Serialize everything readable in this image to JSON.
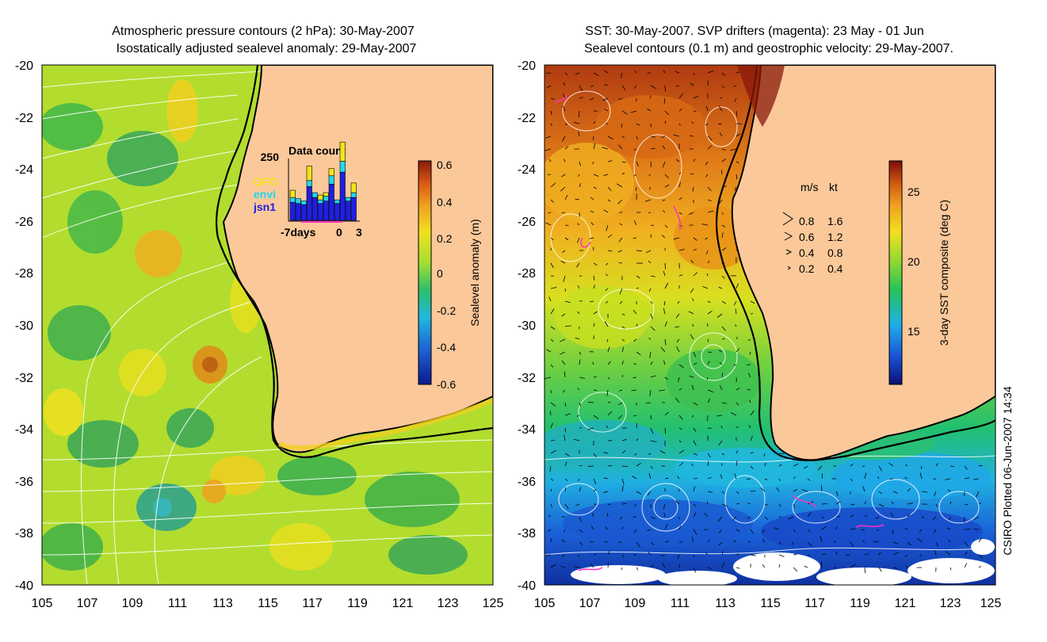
{
  "left_panel": {
    "title_line1": "Atmospheric pressure contours (2 hPa): 30-May-2007",
    "title_line2": "Isostatically adjusted sealevel anomaly: 29-May-2007",
    "lat_ticks": [
      "-20",
      "-22",
      "-24",
      "-26",
      "-28",
      "-30",
      "-32",
      "-34",
      "-36",
      "-38",
      "-40"
    ],
    "lon_ticks": [
      "105",
      "107",
      "109",
      "111",
      "113",
      "115",
      "117",
      "119",
      "121",
      "123",
      "125"
    ],
    "colorbar": {
      "label": "Sealevel anomaly (m)",
      "ticks": [
        "0.6",
        "0.4",
        "0.2",
        "0",
        "-0.2",
        "-0.4",
        "-0.6"
      ],
      "range": [
        -0.6,
        0.6
      ]
    },
    "inset": {
      "title": "Data count",
      "ymax_label": "250",
      "x_labels": [
        "-7days",
        "0",
        "3"
      ],
      "legend": [
        {
          "name": "GFO",
          "color": "#f2e41a"
        },
        {
          "name": "envi",
          "color": "#22d6f0"
        },
        {
          "name": "jsn1",
          "color": "#1f1fe0"
        }
      ],
      "bars": [
        {
          "jsn1": 75,
          "envi": 20,
          "gfo": 30
        },
        {
          "jsn1": 70,
          "envi": 20,
          "gfo": 0
        },
        {
          "jsn1": 65,
          "envi": 15,
          "gfo": 0
        },
        {
          "jsn1": 140,
          "envi": 25,
          "gfo": 60
        },
        {
          "jsn1": 95,
          "envi": 20,
          "gfo": 0
        },
        {
          "jsn1": 70,
          "envi": 15,
          "gfo": 20
        },
        {
          "jsn1": 80,
          "envi": 20,
          "gfo": 15
        },
        {
          "jsn1": 150,
          "envi": 35,
          "gfo": 30
        },
        {
          "jsn1": 70,
          "envi": 15,
          "gfo": 0
        },
        {
          "jsn1": 200,
          "envi": 45,
          "gfo": 80
        },
        {
          "jsn1": 80,
          "envi": 15,
          "gfo": 0
        },
        {
          "jsn1": 95,
          "envi": 20,
          "gfo": 40
        }
      ]
    }
  },
  "right_panel": {
    "title_line1": "SST: 30-May-2007. SVP drifters (magenta): 23 May - 01 Jun",
    "title_line2": "Sealevel contours (0.1 m) and geostrophic velocity: 29-May-2007.",
    "lat_ticks": [
      "-20",
      "-22",
      "-24",
      "-26",
      "-28",
      "-30",
      "-32",
      "-34",
      "-36",
      "-38",
      "-40"
    ],
    "lon_ticks": [
      "105",
      "107",
      "109",
      "111",
      "113",
      "115",
      "117",
      "119",
      "121",
      "123",
      "125"
    ],
    "colorbar": {
      "label": "3-day SST composite (deg C)",
      "ticks": [
        "25",
        "20",
        "15"
      ],
      "range": [
        11,
        27
      ]
    },
    "velocity_key": {
      "header_ms": "m/s",
      "header_kt": "kt",
      "rows": [
        {
          "ms": "0.8",
          "kt": "1.6"
        },
        {
          "ms": "0.6",
          "kt": "1.2"
        },
        {
          "ms": "0.4",
          "kt": "0.8"
        },
        {
          "ms": "0.2",
          "kt": "0.4"
        }
      ]
    },
    "credit": "CSIRO Plotted 06-Jun-2007 14:34"
  }
}
